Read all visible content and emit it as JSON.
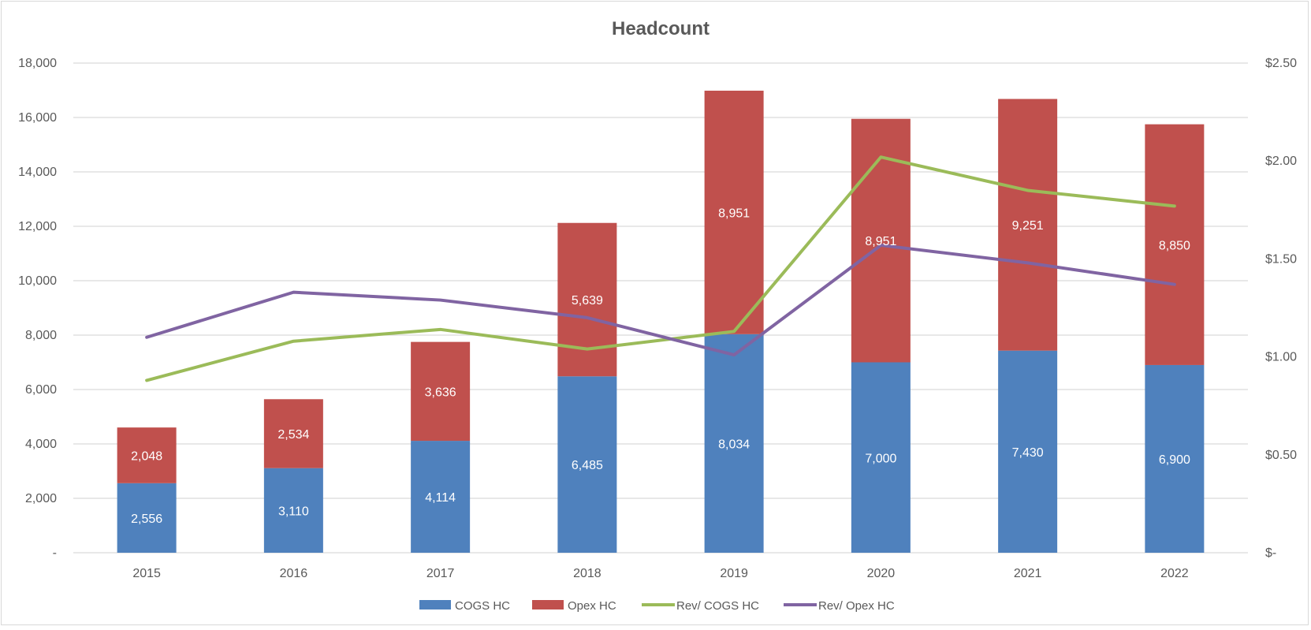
{
  "chart_data": {
    "type": "bar",
    "stacked": true,
    "title": "Headcount",
    "categories": [
      "2015",
      "2016",
      "2017",
      "2018",
      "2019",
      "2020",
      "2021",
      "2022"
    ],
    "series": [
      {
        "name": "COGS HC",
        "type": "bar",
        "axis": "left",
        "color": "#4f81bd",
        "values": [
          2556,
          3110,
          4114,
          6485,
          8034,
          7000,
          7430,
          6900
        ],
        "labels": [
          "2,556",
          "3,110",
          "4,114",
          "6,485",
          "8,034",
          "7,000",
          "7,430",
          "6,900"
        ]
      },
      {
        "name": "Opex HC",
        "type": "bar",
        "axis": "left",
        "color": "#c0504d",
        "values": [
          2048,
          2534,
          3636,
          5639,
          8951,
          8951,
          9251,
          8850
        ],
        "labels": [
          "2,048",
          "2,534",
          "3,636",
          "5,639",
          "8,951",
          "8,951",
          "9,251",
          "8,850"
        ]
      },
      {
        "name": "Rev/ COGS HC",
        "type": "line",
        "axis": "right",
        "color": "#9bbb59",
        "values": [
          0.88,
          1.08,
          1.14,
          1.04,
          1.13,
          2.02,
          1.85,
          1.77
        ]
      },
      {
        "name": "Rev/ Opex HC",
        "type": "line",
        "axis": "right",
        "color": "#8064a2",
        "values": [
          1.1,
          1.33,
          1.29,
          1.2,
          1.01,
          1.57,
          1.48,
          1.37
        ]
      }
    ],
    "y_left": {
      "min": 0,
      "max": 18000,
      "step": 2000,
      "tick_labels": [
        "-",
        "2,000",
        "4,000",
        "6,000",
        "8,000",
        "10,000",
        "12,000",
        "14,000",
        "16,000",
        "18,000"
      ]
    },
    "y_right": {
      "min": 0,
      "max": 2.5,
      "step": 0.5,
      "tick_labels": [
        "$-",
        "$0.50",
        "$1.00",
        "$1.50",
        "$2.00",
        "$2.50"
      ]
    },
    "grid": true,
    "legend_position": "bottom"
  }
}
